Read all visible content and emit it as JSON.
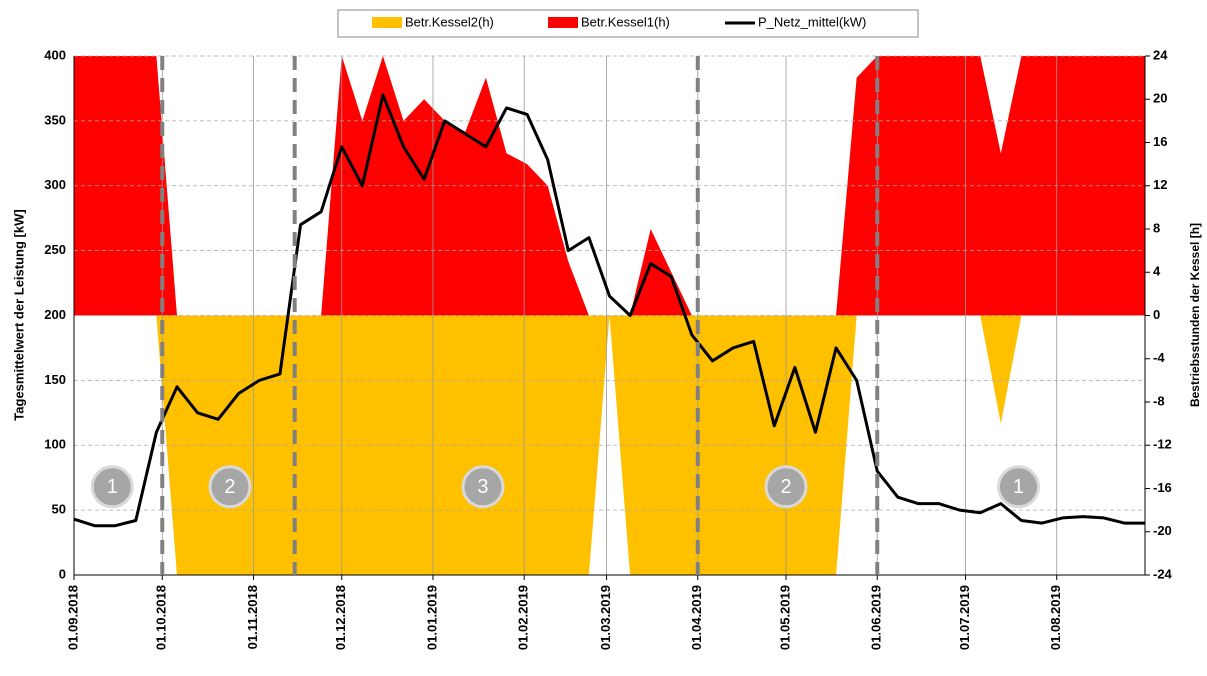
{
  "chart_data": {
    "type": "combo",
    "ylabel": "Tagesmittelwert der Leistung [kW]",
    "y2label": "Bestriebsstunden der Kessel [h]",
    "x": [
      "01.09.2018",
      "08.09.2018",
      "15.09.2018",
      "22.09.2018",
      "29.09.2018",
      "06.10.2018",
      "13.10.2018",
      "20.10.2018",
      "27.10.2018",
      "03.11.2018",
      "10.11.2018",
      "17.11.2018",
      "24.11.2018",
      "01.12.2018",
      "08.12.2018",
      "15.12.2018",
      "22.12.2018",
      "29.12.2018",
      "05.01.2019",
      "12.01.2019",
      "19.01.2019",
      "26.01.2019",
      "02.02.2019",
      "09.02.2019",
      "16.02.2019",
      "23.02.2019",
      "02.03.2019",
      "09.03.2019",
      "16.03.2019",
      "23.03.2019",
      "30.03.2019",
      "06.04.2019",
      "13.04.2019",
      "20.04.2019",
      "27.04.2019",
      "04.05.2019",
      "11.05.2019",
      "18.05.2019",
      "25.05.2019",
      "01.06.2019",
      "08.06.2019",
      "15.06.2019",
      "22.06.2019",
      "29.06.2019",
      "06.07.2019",
      "13.07.2019",
      "20.07.2019",
      "27.07.2019",
      "03.08.2019",
      "10.08.2019",
      "17.08.2019",
      "24.08.2019",
      "31.08.2019"
    ],
    "series": [
      {
        "name": "Betr.Kessel2(h)",
        "color": "#ffc000",
        "kind": "area",
        "axis": "y2",
        "values": [
          0,
          0,
          0,
          0,
          0,
          -24,
          -24,
          -24,
          -24,
          -24,
          -24,
          -24,
          -24,
          -24,
          -24,
          -24,
          -24,
          -24,
          -24,
          -24,
          -24,
          -24,
          -24,
          -24,
          -24,
          -24,
          0,
          -24,
          -24,
          -24,
          -24,
          -24,
          -24,
          -24,
          -24,
          -24,
          -24,
          -24,
          0,
          0,
          0,
          0,
          0,
          0,
          0,
          -10,
          0,
          0,
          0,
          0,
          0,
          0,
          0
        ]
      },
      {
        "name": "Betr.Kessel1(h)",
        "color": "#ff0000",
        "kind": "area",
        "axis": "y2",
        "values": [
          24,
          24,
          24,
          24,
          24,
          0,
          0,
          0,
          0,
          0,
          0,
          0,
          0,
          24,
          18,
          24,
          18,
          20,
          18,
          17,
          22,
          15,
          14,
          12,
          5,
          0,
          0,
          0,
          8,
          4,
          0,
          0,
          0,
          0,
          0,
          0,
          0,
          0,
          22,
          24,
          24,
          24,
          24,
          24,
          24,
          15,
          24,
          24,
          24,
          24,
          24,
          24,
          24
        ]
      },
      {
        "name": "P_Netz_mittel(kW)",
        "color": "#000000",
        "kind": "line",
        "values": [
          43,
          38,
          38,
          42,
          110,
          145,
          125,
          120,
          140,
          150,
          155,
          270,
          280,
          330,
          300,
          370,
          330,
          305,
          350,
          340,
          330,
          360,
          355,
          320,
          250,
          260,
          215,
          200,
          240,
          230,
          185,
          165,
          175,
          180,
          115,
          160,
          110,
          175,
          150,
          80,
          60,
          55,
          55,
          50,
          48,
          55,
          42,
          40,
          44,
          45,
          44,
          40,
          40
        ]
      }
    ],
    "xlim": [
      "01.09.2018",
      "31.08.2019"
    ],
    "xticks": [
      "01.09.2018",
      "01.10.2018",
      "01.11.2018",
      "01.12.2018",
      "01.01.2019",
      "01.02.2019",
      "01.03.2019",
      "01.04.2019",
      "01.05.2019",
      "01.06.2019",
      "01.07.2019",
      "01.08.2019"
    ],
    "ylim": [
      0,
      400
    ],
    "yticks": [
      0,
      50,
      100,
      150,
      200,
      250,
      300,
      350,
      400
    ],
    "y2lim": [
      -24,
      24
    ],
    "y2ticks": [
      -24,
      -20,
      -16,
      -12,
      -8,
      -4,
      0,
      4,
      8,
      12,
      16,
      20,
      24
    ],
    "dividers": [
      "01.10.2018",
      "15.11.2018",
      "01.04.2019",
      "01.06.2019"
    ],
    "annotations": [
      {
        "text": "1",
        "x": "14.09.2018",
        "y": 68
      },
      {
        "text": "2",
        "x": "24.10.2018",
        "y": 68
      },
      {
        "text": "3",
        "x": "18.01.2019",
        "y": 68
      },
      {
        "text": "2",
        "x": "01.05.2019",
        "y": 68
      },
      {
        "text": "1",
        "x": "19.07.2019",
        "y": 68
      }
    ],
    "grid": true
  }
}
